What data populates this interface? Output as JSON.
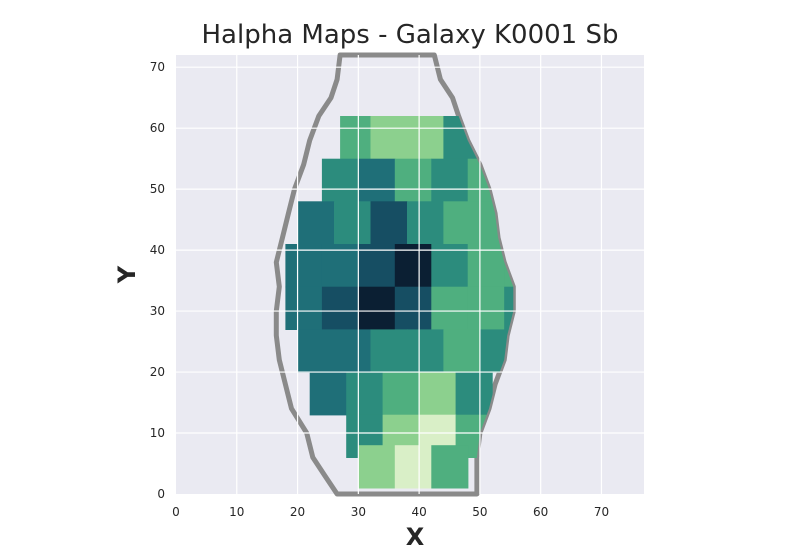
{
  "chart_data": {
    "type": "heatmap",
    "title": "Halpha Maps - Galaxy K0001 Sb",
    "xlabel": "X",
    "ylabel": "Y",
    "xlim": [
      0,
      77
    ],
    "ylim": [
      0,
      72
    ],
    "x_ticks": [
      "0",
      "10",
      "20",
      "30",
      "40",
      "50",
      "60",
      "70"
    ],
    "y_ticks": [
      "0",
      "10",
      "20",
      "30",
      "40",
      "50",
      "60",
      "70"
    ],
    "grid": true,
    "background": "#EAEAF2",
    "colormap": [
      "#0B1F33",
      "#164E63",
      "#1F6F78",
      "#2C8C7D",
      "#4FAF7F",
      "#8CD08E",
      "#D9EFC7"
    ],
    "cells": [
      [
        27,
        55,
        4
      ],
      [
        32,
        55,
        5
      ],
      [
        38,
        55,
        5
      ],
      [
        44,
        55,
        3
      ],
      [
        24,
        48,
        3
      ],
      [
        30,
        48,
        2
      ],
      [
        36,
        48,
        4
      ],
      [
        42,
        48,
        3
      ],
      [
        48,
        48,
        4
      ],
      [
        20,
        41,
        2
      ],
      [
        26,
        41,
        3
      ],
      [
        32,
        41,
        1
      ],
      [
        38,
        41,
        3
      ],
      [
        44,
        41,
        4
      ],
      [
        50,
        41,
        4
      ],
      [
        18,
        34,
        2
      ],
      [
        24,
        34,
        2
      ],
      [
        30,
        34,
        1
      ],
      [
        36,
        34,
        0
      ],
      [
        42,
        34,
        3
      ],
      [
        48,
        34,
        4
      ],
      [
        54,
        34,
        4
      ],
      [
        18,
        27,
        2
      ],
      [
        24,
        27,
        1
      ],
      [
        30,
        27,
        0
      ],
      [
        36,
        27,
        1
      ],
      [
        42,
        27,
        4
      ],
      [
        48,
        27,
        4
      ],
      [
        54,
        27,
        3
      ],
      [
        20,
        20,
        2
      ],
      [
        26,
        20,
        2
      ],
      [
        32,
        20,
        3
      ],
      [
        38,
        20,
        3
      ],
      [
        44,
        20,
        4
      ],
      [
        50,
        20,
        3
      ],
      [
        22,
        13,
        2
      ],
      [
        28,
        13,
        3
      ],
      [
        34,
        13,
        4
      ],
      [
        40,
        13,
        5
      ],
      [
        46,
        13,
        3
      ],
      [
        28,
        6,
        3
      ],
      [
        34,
        6,
        5
      ],
      [
        40,
        6,
        6
      ],
      [
        46,
        6,
        4
      ],
      [
        30,
        1,
        5
      ],
      [
        36,
        1,
        6
      ],
      [
        42,
        1,
        4
      ]
    ]
  }
}
